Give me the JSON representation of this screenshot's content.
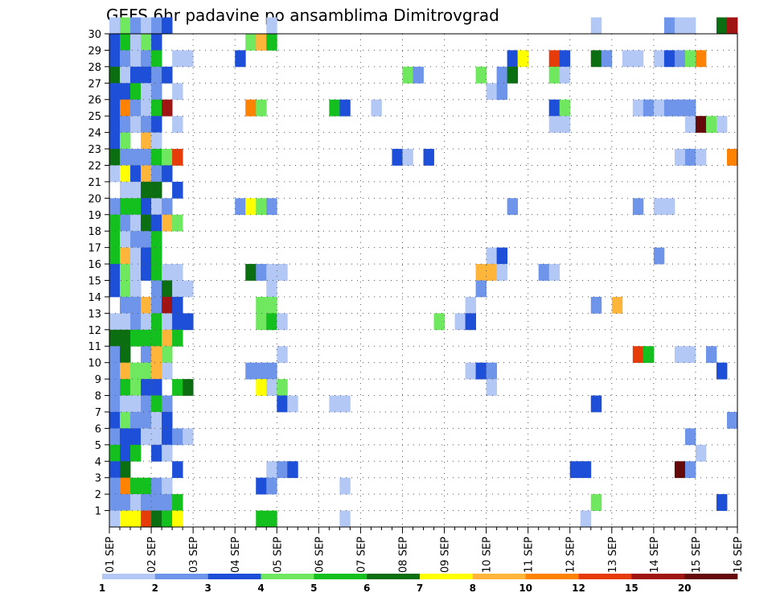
{
  "chart_data": {
    "type": "heatmap",
    "title": "GEFS 6hr padavine po ansamblima Dimitrovgrad",
    "xlabel": "",
    "ylabel": "",
    "x_tick_labels": [
      "01 SEP",
      "02 SEP",
      "03 SEP",
      "04 SEP",
      "05 SEP",
      "06 SEP",
      "07 SEP",
      "08 SEP",
      "09 SEP",
      "10 SEP",
      "11 SEP",
      "12 SEP",
      "13 SEP",
      "14 SEP",
      "15 SEP",
      "16 SEP"
    ],
    "y_tick_labels": [
      "1",
      "2",
      "3",
      "4",
      "5",
      "6",
      "7",
      "8",
      "9",
      "10",
      "11",
      "12",
      "13",
      "14",
      "15",
      "16",
      "17",
      "18",
      "19",
      "20",
      "21",
      "22",
      "23",
      "24",
      "25",
      "26",
      "27",
      "28",
      "29",
      "30"
    ],
    "xlim_steps": [
      0,
      60
    ],
    "ylim": [
      0,
      30
    ],
    "grid": true,
    "colorbar": {
      "levels": [
        "1",
        "2",
        "3",
        "4",
        "5",
        "6",
        "7",
        "8",
        "10",
        "12",
        "15",
        "20"
      ],
      "colors": [
        "#b3c8f5",
        "#6e95ea",
        "#1d4fd8",
        "#6fe860",
        "#14c01e",
        "#0b6e10",
        "#ffff00",
        "#ffb43a",
        "#ff8200",
        "#e63c0a",
        "#a01414",
        "#640a0a"
      ]
    },
    "cells": [
      [
        30,
        1,
        1
      ],
      [
        30,
        2,
        4
      ],
      [
        30,
        3,
        2
      ],
      [
        30,
        4,
        1
      ],
      [
        30,
        5,
        2
      ],
      [
        30,
        6,
        3
      ],
      [
        30,
        16,
        1
      ],
      [
        30,
        47,
        1
      ],
      [
        30,
        54,
        2
      ],
      [
        30,
        55,
        1
      ],
      [
        30,
        56,
        1
      ],
      [
        30,
        59,
        6
      ],
      [
        30,
        60,
        11
      ],
      [
        29,
        1,
        3
      ],
      [
        29,
        2,
        5
      ],
      [
        29,
        3,
        1
      ],
      [
        29,
        4,
        4
      ],
      [
        29,
        5,
        3
      ],
      [
        29,
        14,
        4
      ],
      [
        29,
        15,
        8
      ],
      [
        29,
        16,
        5
      ],
      [
        28,
        1,
        3
      ],
      [
        28,
        2,
        2
      ],
      [
        28,
        3,
        1
      ],
      [
        28,
        4,
        2
      ],
      [
        28,
        5,
        5
      ],
      [
        28,
        7,
        1
      ],
      [
        28,
        8,
        1
      ],
      [
        28,
        13,
        3
      ],
      [
        28,
        39,
        3
      ],
      [
        28,
        40,
        7
      ],
      [
        28,
        43,
        10
      ],
      [
        28,
        44,
        3
      ],
      [
        28,
        47,
        6
      ],
      [
        28,
        48,
        2
      ],
      [
        28,
        50,
        1
      ],
      [
        28,
        51,
        1
      ],
      [
        28,
        53,
        1
      ],
      [
        28,
        54,
        3
      ],
      [
        28,
        55,
        2
      ],
      [
        28,
        56,
        4
      ],
      [
        28,
        57,
        9
      ],
      [
        27,
        1,
        6
      ],
      [
        27,
        2,
        1
      ],
      [
        27,
        3,
        3
      ],
      [
        27,
        4,
        3
      ],
      [
        27,
        5,
        2
      ],
      [
        27,
        6,
        3
      ],
      [
        27,
        29,
        4
      ],
      [
        27,
        30,
        2
      ],
      [
        27,
        36,
        4
      ],
      [
        27,
        38,
        2
      ],
      [
        27,
        39,
        6
      ],
      [
        27,
        43,
        4
      ],
      [
        27,
        44,
        1
      ],
      [
        26,
        1,
        3
      ],
      [
        26,
        2,
        3
      ],
      [
        26,
        3,
        5
      ],
      [
        26,
        4,
        1
      ],
      [
        26,
        5,
        2
      ],
      [
        26,
        7,
        1
      ],
      [
        26,
        37,
        1
      ],
      [
        26,
        38,
        2
      ],
      [
        25,
        1,
        3
      ],
      [
        25,
        2,
        9
      ],
      [
        25,
        3,
        2
      ],
      [
        25,
        4,
        1
      ],
      [
        25,
        5,
        5
      ],
      [
        25,
        6,
        11
      ],
      [
        25,
        14,
        9
      ],
      [
        25,
        15,
        4
      ],
      [
        25,
        22,
        5
      ],
      [
        25,
        23,
        3
      ],
      [
        25,
        26,
        1
      ],
      [
        25,
        43,
        3
      ],
      [
        25,
        44,
        4
      ],
      [
        25,
        51,
        1
      ],
      [
        25,
        52,
        2
      ],
      [
        25,
        53,
        1
      ],
      [
        25,
        54,
        2
      ],
      [
        25,
        55,
        2
      ],
      [
        25,
        56,
        2
      ],
      [
        24,
        1,
        3
      ],
      [
        24,
        2,
        2
      ],
      [
        24,
        3,
        1
      ],
      [
        24,
        4,
        2
      ],
      [
        24,
        5,
        3
      ],
      [
        24,
        7,
        1
      ],
      [
        24,
        43,
        1
      ],
      [
        24,
        44,
        1
      ],
      [
        24,
        56,
        1
      ],
      [
        24,
        57,
        12
      ],
      [
        24,
        58,
        4
      ],
      [
        24,
        59,
        1
      ],
      [
        23,
        1,
        3
      ],
      [
        23,
        2,
        4
      ],
      [
        23,
        4,
        8
      ],
      [
        23,
        5,
        1
      ],
      [
        22,
        1,
        6
      ],
      [
        22,
        2,
        2
      ],
      [
        22,
        3,
        2
      ],
      [
        22,
        4,
        2
      ],
      [
        22,
        5,
        5
      ],
      [
        22,
        6,
        4
      ],
      [
        22,
        7,
        10
      ],
      [
        22,
        28,
        3
      ],
      [
        22,
        29,
        1
      ],
      [
        22,
        31,
        3
      ],
      [
        22,
        55,
        1
      ],
      [
        22,
        56,
        2
      ],
      [
        22,
        57,
        1
      ],
      [
        22,
        60,
        9
      ],
      [
        21,
        1,
        1
      ],
      [
        21,
        2,
        7
      ],
      [
        21,
        3,
        3
      ],
      [
        21,
        4,
        8
      ],
      [
        21,
        5,
        2
      ],
      [
        21,
        6,
        3
      ],
      [
        20,
        2,
        1
      ],
      [
        20,
        3,
        1
      ],
      [
        20,
        4,
        6
      ],
      [
        20,
        5,
        6
      ],
      [
        20,
        7,
        3
      ],
      [
        19,
        1,
        2
      ],
      [
        19,
        2,
        5
      ],
      [
        19,
        3,
        5
      ],
      [
        19,
        4,
        3
      ],
      [
        19,
        5,
        1
      ],
      [
        19,
        6,
        2
      ],
      [
        19,
        13,
        2
      ],
      [
        19,
        14,
        7
      ],
      [
        19,
        15,
        4
      ],
      [
        19,
        16,
        2
      ],
      [
        19,
        39,
        2
      ],
      [
        19,
        51,
        2
      ],
      [
        19,
        53,
        1
      ],
      [
        19,
        54,
        1
      ],
      [
        18,
        1,
        5
      ],
      [
        18,
        2,
        2
      ],
      [
        18,
        3,
        1
      ],
      [
        18,
        4,
        6
      ],
      [
        18,
        5,
        3
      ],
      [
        18,
        6,
        8
      ],
      [
        18,
        7,
        4
      ],
      [
        17,
        1,
        5
      ],
      [
        17,
        2,
        1
      ],
      [
        17,
        3,
        2
      ],
      [
        17,
        4,
        2
      ],
      [
        17,
        5,
        5
      ],
      [
        16,
        1,
        5
      ],
      [
        16,
        2,
        8
      ],
      [
        16,
        3,
        1
      ],
      [
        16,
        4,
        3
      ],
      [
        16,
        5,
        5
      ],
      [
        16,
        37,
        1
      ],
      [
        16,
        38,
        3
      ],
      [
        16,
        53,
        2
      ],
      [
        15,
        1,
        3
      ],
      [
        15,
        2,
        4
      ],
      [
        15,
        3,
        1
      ],
      [
        15,
        4,
        3
      ],
      [
        15,
        5,
        5
      ],
      [
        15,
        6,
        1
      ],
      [
        15,
        7,
        1
      ],
      [
        15,
        14,
        6
      ],
      [
        15,
        15,
        2
      ],
      [
        15,
        16,
        1
      ],
      [
        15,
        17,
        1
      ],
      [
        15,
        36,
        8
      ],
      [
        15,
        37,
        8
      ],
      [
        15,
        38,
        1
      ],
      [
        15,
        42,
        2
      ],
      [
        15,
        43,
        1
      ],
      [
        14,
        1,
        3
      ],
      [
        14,
        2,
        4
      ],
      [
        14,
        3,
        1
      ],
      [
        14,
        5,
        2
      ],
      [
        14,
        6,
        6
      ],
      [
        14,
        7,
        1
      ],
      [
        14,
        8,
        1
      ],
      [
        14,
        16,
        1
      ],
      [
        14,
        36,
        2
      ],
      [
        13,
        2,
        2
      ],
      [
        13,
        3,
        2
      ],
      [
        13,
        4,
        8
      ],
      [
        13,
        5,
        2
      ],
      [
        13,
        6,
        11
      ],
      [
        13,
        7,
        3
      ],
      [
        13,
        15,
        4
      ],
      [
        13,
        16,
        4
      ],
      [
        13,
        35,
        1
      ],
      [
        13,
        47,
        2
      ],
      [
        13,
        49,
        8
      ],
      [
        12,
        1,
        1
      ],
      [
        12,
        2,
        1
      ],
      [
        12,
        3,
        2
      ],
      [
        12,
        4,
        1
      ],
      [
        12,
        5,
        5
      ],
      [
        12,
        6,
        1
      ],
      [
        12,
        7,
        3
      ],
      [
        12,
        8,
        3
      ],
      [
        12,
        15,
        4
      ],
      [
        12,
        16,
        5
      ],
      [
        12,
        17,
        1
      ],
      [
        12,
        32,
        4
      ],
      [
        12,
        34,
        1
      ],
      [
        12,
        35,
        3
      ],
      [
        11,
        1,
        6
      ],
      [
        11,
        2,
        6
      ],
      [
        11,
        3,
        5
      ],
      [
        11,
        4,
        5
      ],
      [
        11,
        5,
        5
      ],
      [
        11,
        6,
        8
      ],
      [
        11,
        7,
        5
      ],
      [
        10,
        1,
        2
      ],
      [
        10,
        2,
        6
      ],
      [
        10,
        4,
        2
      ],
      [
        10,
        5,
        8
      ],
      [
        10,
        6,
        4
      ],
      [
        10,
        17,
        1
      ],
      [
        10,
        51,
        10
      ],
      [
        10,
        52,
        5
      ],
      [
        10,
        55,
        1
      ],
      [
        10,
        56,
        1
      ],
      [
        10,
        58,
        2
      ],
      [
        9,
        1,
        2
      ],
      [
        9,
        2,
        8
      ],
      [
        9,
        3,
        4
      ],
      [
        9,
        4,
        4
      ],
      [
        9,
        5,
        8
      ],
      [
        9,
        6,
        1
      ],
      [
        9,
        14,
        2
      ],
      [
        9,
        15,
        2
      ],
      [
        9,
        16,
        2
      ],
      [
        9,
        35,
        1
      ],
      [
        9,
        36,
        3
      ],
      [
        9,
        37,
        2
      ],
      [
        9,
        59,
        3
      ],
      [
        8,
        1,
        2
      ],
      [
        8,
        2,
        5
      ],
      [
        8,
        3,
        4
      ],
      [
        8,
        4,
        3
      ],
      [
        8,
        5,
        3
      ],
      [
        8,
        7,
        5
      ],
      [
        8,
        8,
        6
      ],
      [
        8,
        15,
        7
      ],
      [
        8,
        16,
        1
      ],
      [
        8,
        17,
        4
      ],
      [
        8,
        37,
        1
      ],
      [
        7,
        1,
        2
      ],
      [
        7,
        2,
        1
      ],
      [
        7,
        3,
        1
      ],
      [
        7,
        4,
        2
      ],
      [
        7,
        5,
        5
      ],
      [
        7,
        6,
        2
      ],
      [
        7,
        17,
        3
      ],
      [
        7,
        18,
        1
      ],
      [
        7,
        22,
        1
      ],
      [
        7,
        23,
        1
      ],
      [
        7,
        47,
        3
      ],
      [
        6,
        1,
        3
      ],
      [
        6,
        2,
        4
      ],
      [
        6,
        3,
        2
      ],
      [
        6,
        4,
        2
      ],
      [
        6,
        5,
        1
      ],
      [
        6,
        6,
        3
      ],
      [
        6,
        60,
        2
      ],
      [
        5,
        1,
        2
      ],
      [
        5,
        2,
        3
      ],
      [
        5,
        3,
        3
      ],
      [
        5,
        4,
        1
      ],
      [
        5,
        5,
        1
      ],
      [
        5,
        6,
        3
      ],
      [
        5,
        7,
        2
      ],
      [
        5,
        8,
        1
      ],
      [
        5,
        56,
        2
      ],
      [
        4,
        1,
        5
      ],
      [
        4,
        2,
        3
      ],
      [
        4,
        3,
        5
      ],
      [
        4,
        5,
        3
      ],
      [
        4,
        6,
        1
      ],
      [
        4,
        57,
        1
      ],
      [
        3,
        1,
        3
      ],
      [
        3,
        2,
        6
      ],
      [
        3,
        7,
        3
      ],
      [
        3,
        16,
        1
      ],
      [
        3,
        17,
        2
      ],
      [
        3,
        18,
        3
      ],
      [
        3,
        45,
        3
      ],
      [
        3,
        46,
        3
      ],
      [
        3,
        55,
        12
      ],
      [
        3,
        56,
        2
      ],
      [
        2,
        1,
        2
      ],
      [
        2,
        2,
        9
      ],
      [
        2,
        3,
        5
      ],
      [
        2,
        4,
        5
      ],
      [
        2,
        5,
        2
      ],
      [
        2,
        6,
        1
      ],
      [
        2,
        15,
        3
      ],
      [
        2,
        16,
        2
      ],
      [
        2,
        23,
        1
      ],
      [
        1,
        1,
        2
      ],
      [
        1,
        2,
        2
      ],
      [
        1,
        3,
        1
      ],
      [
        1,
        4,
        2
      ],
      [
        1,
        5,
        2
      ],
      [
        1,
        6,
        2
      ],
      [
        1,
        7,
        5
      ],
      [
        1,
        47,
        4
      ],
      [
        1,
        59,
        3
      ],
      [
        0,
        1,
        1
      ],
      [
        0,
        2,
        7
      ],
      [
        0,
        3,
        7
      ],
      [
        0,
        4,
        10
      ],
      [
        0,
        5,
        6
      ],
      [
        0,
        6,
        5
      ],
      [
        0,
        7,
        7
      ],
      [
        0,
        15,
        5
      ],
      [
        0,
        16,
        5
      ],
      [
        0,
        23,
        1
      ],
      [
        0,
        46,
        1
      ]
    ]
  }
}
